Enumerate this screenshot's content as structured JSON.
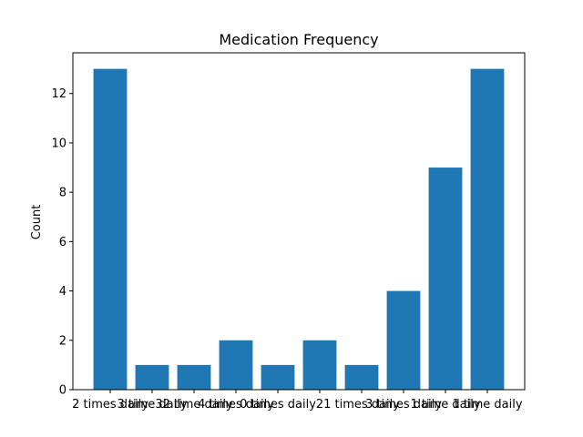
{
  "chart_data": {
    "type": "bar",
    "title": "Medication Frequency",
    "xlabel": "",
    "ylabel": "Count",
    "categories": [
      "2 times daily",
      "3 time daily",
      "32 time daily",
      "4 times daily",
      "0 times daily",
      "2",
      "1 times daily",
      "3 times daily",
      "1 time daily",
      "1 time daily"
    ],
    "values": [
      13,
      1,
      1,
      2,
      1,
      2,
      1,
      4,
      9,
      13
    ],
    "ylim": [
      0,
      13.65
    ],
    "yticks": [
      0,
      2,
      4,
      6,
      8,
      10,
      12
    ],
    "grid": false,
    "color": "#1f77b4"
  }
}
